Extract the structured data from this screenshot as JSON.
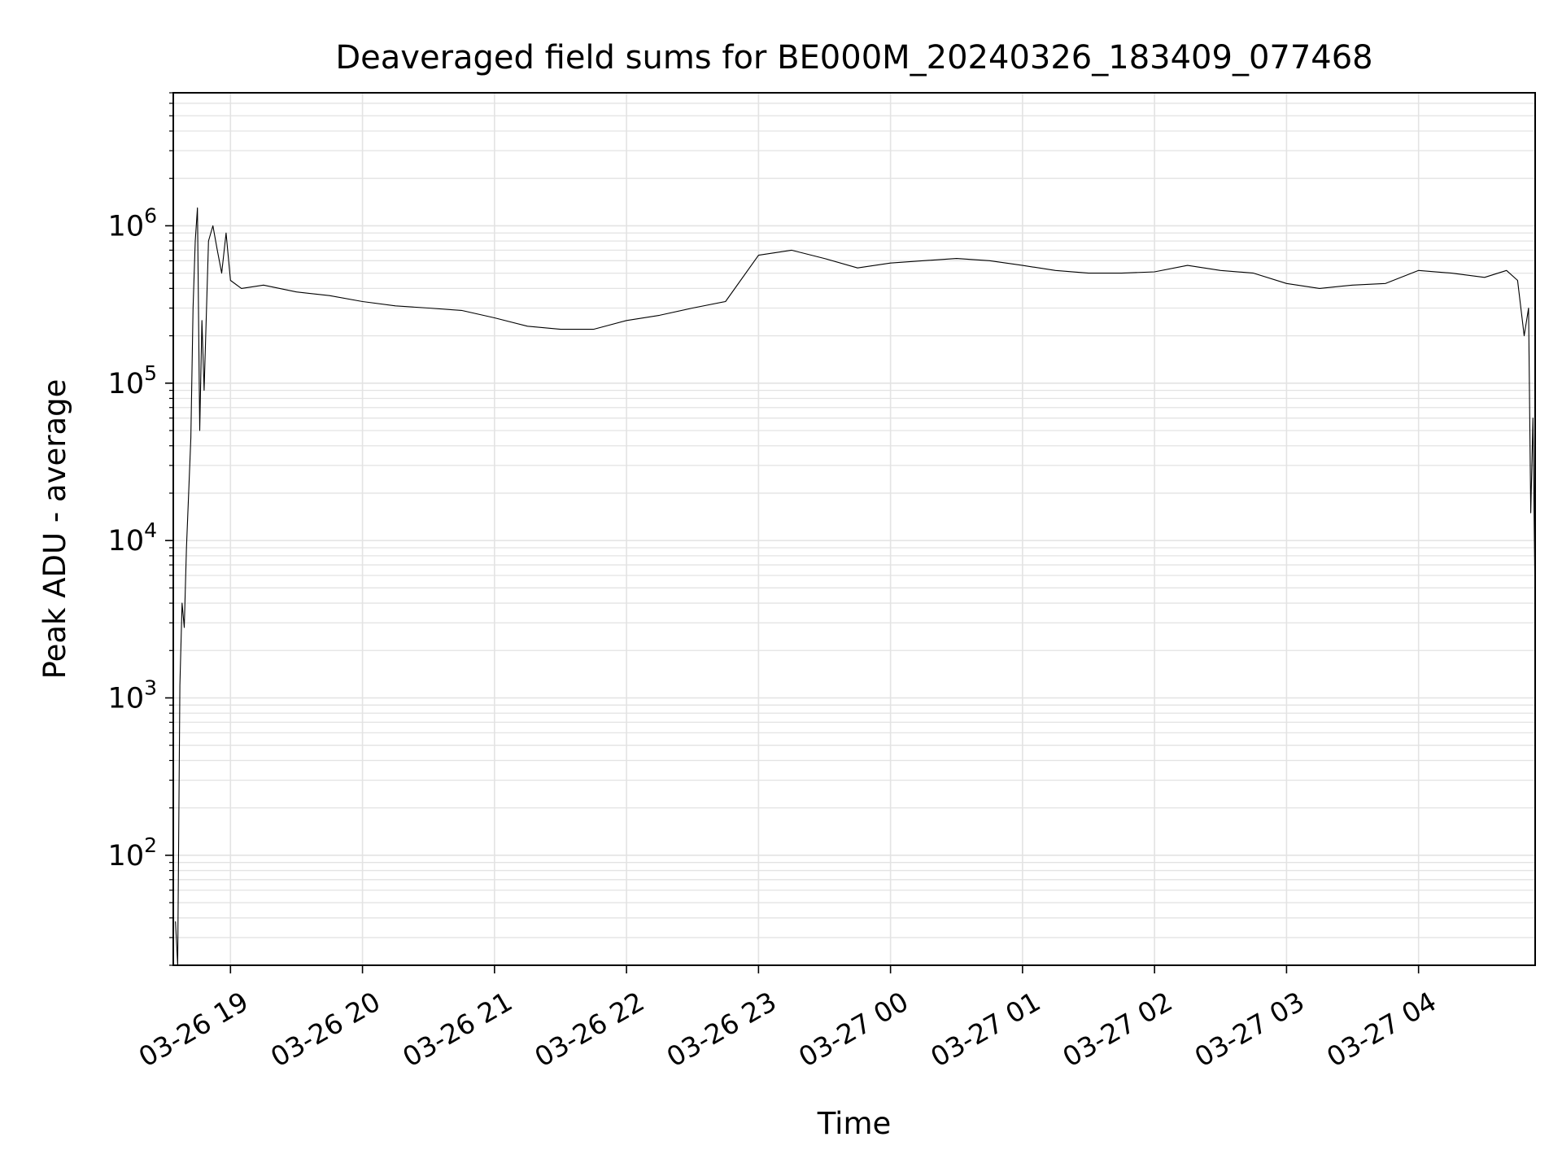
{
  "chart_data": {
    "type": "line",
    "title": "Deaveraged field sums for BE000M_20240326_183409_077468",
    "xlabel": "Time",
    "ylabel": "Peak ADU - average",
    "yscale": "log",
    "ylim": [
      20,
      7000000
    ],
    "xlim": [
      "2024-03-26 18:34",
      "2024-03-27 04:53"
    ],
    "grid": true,
    "line_color": "#000000",
    "x_tick_labels": [
      "03-26 19",
      "03-26 20",
      "03-26 21",
      "03-26 22",
      "03-26 23",
      "03-27 00",
      "03-27 01",
      "03-27 02",
      "03-27 03",
      "03-27 04"
    ],
    "x_ticks": [
      "2024-03-26 19:00",
      "2024-03-26 20:00",
      "2024-03-26 21:00",
      "2024-03-26 22:00",
      "2024-03-26 23:00",
      "2024-03-27 00:00",
      "2024-03-27 01:00",
      "2024-03-27 02:00",
      "2024-03-27 03:00",
      "2024-03-27 04:00"
    ],
    "y_tick_labels": [
      {
        "base": "10",
        "exp": "2"
      },
      {
        "base": "10",
        "exp": "3"
      },
      {
        "base": "10",
        "exp": "4"
      },
      {
        "base": "10",
        "exp": "5"
      },
      {
        "base": "10",
        "exp": "6"
      }
    ],
    "y_ticks": [
      100,
      1000,
      10000,
      100000,
      1000000
    ],
    "series": [
      {
        "x": [
          "2024-03-26 18:35",
          "2024-03-26 18:36",
          "2024-03-26 18:37",
          "2024-03-26 18:38",
          "2024-03-26 18:39",
          "2024-03-26 18:40",
          "2024-03-26 18:41",
          "2024-03-26 18:42",
          "2024-03-26 18:43",
          "2024-03-26 18:44",
          "2024-03-26 18:45",
          "2024-03-26 18:46",
          "2024-03-26 18:47",
          "2024-03-26 18:48",
          "2024-03-26 18:50",
          "2024-03-26 18:52",
          "2024-03-26 18:54",
          "2024-03-26 18:56",
          "2024-03-26 18:58",
          "2024-03-26 19:00",
          "2024-03-26 19:05",
          "2024-03-26 19:15",
          "2024-03-26 19:30",
          "2024-03-26 19:45",
          "2024-03-26 20:00",
          "2024-03-26 20:15",
          "2024-03-26 20:30",
          "2024-03-26 20:45",
          "2024-03-26 21:00",
          "2024-03-26 21:15",
          "2024-03-26 21:30",
          "2024-03-26 21:45",
          "2024-03-26 22:00",
          "2024-03-26 22:15",
          "2024-03-26 22:30",
          "2024-03-26 22:45",
          "2024-03-26 23:00",
          "2024-03-26 23:15",
          "2024-03-26 23:30",
          "2024-03-26 23:45",
          "2024-03-27 00:00",
          "2024-03-27 00:15",
          "2024-03-27 00:30",
          "2024-03-27 00:45",
          "2024-03-27 01:00",
          "2024-03-27 01:15",
          "2024-03-27 01:30",
          "2024-03-27 01:45",
          "2024-03-27 02:00",
          "2024-03-27 02:15",
          "2024-03-27 02:30",
          "2024-03-27 02:45",
          "2024-03-27 03:00",
          "2024-03-27 03:15",
          "2024-03-27 03:30",
          "2024-03-27 03:45",
          "2024-03-27 04:00",
          "2024-03-27 04:15",
          "2024-03-27 04:30",
          "2024-03-27 04:40",
          "2024-03-27 04:45",
          "2024-03-27 04:48",
          "2024-03-27 04:50",
          "2024-03-27 04:51",
          "2024-03-27 04:52",
          "2024-03-27 04:53"
        ],
        "y": [
          38,
          20,
          1200,
          4000,
          2800,
          9000,
          20000,
          45000,
          300000,
          800000,
          1300000,
          50000,
          250000,
          90000,
          800000,
          1000000,
          700000,
          500000,
          900000,
          450000,
          400000,
          420000,
          380000,
          360000,
          330000,
          310000,
          300000,
          290000,
          260000,
          230000,
          220000,
          220000,
          250000,
          270000,
          300000,
          330000,
          650000,
          700000,
          620000,
          540000,
          580000,
          600000,
          620000,
          600000,
          560000,
          520000,
          500000,
          500000,
          510000,
          560000,
          520000,
          500000,
          430000,
          400000,
          420000,
          430000,
          520000,
          500000,
          470000,
          520000,
          450000,
          200000,
          300000,
          15000,
          60000,
          3800
        ]
      }
    ]
  }
}
